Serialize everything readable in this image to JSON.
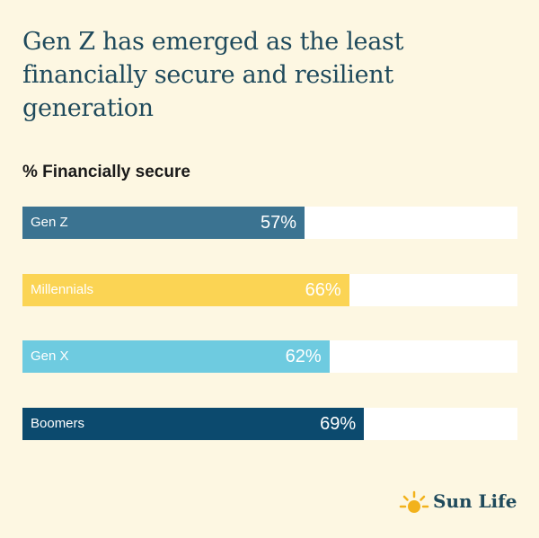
{
  "title": "Gen Z has emerged as the least financially secure and resilient generation",
  "brand": "Sun Life",
  "chart_data": {
    "type": "bar",
    "orientation": "horizontal",
    "title": "% Financially secure",
    "categories": [
      "Gen Z",
      "Millennials",
      "Gen X",
      "Boomers"
    ],
    "values": [
      57,
      66,
      62,
      69
    ],
    "labels": [
      "57%",
      "66%",
      "62%",
      "69%"
    ],
    "xlim": [
      0,
      100
    ],
    "colors": [
      "#3b7391",
      "#fbd454",
      "#6ecbe0",
      "#0c4a6e"
    ]
  }
}
